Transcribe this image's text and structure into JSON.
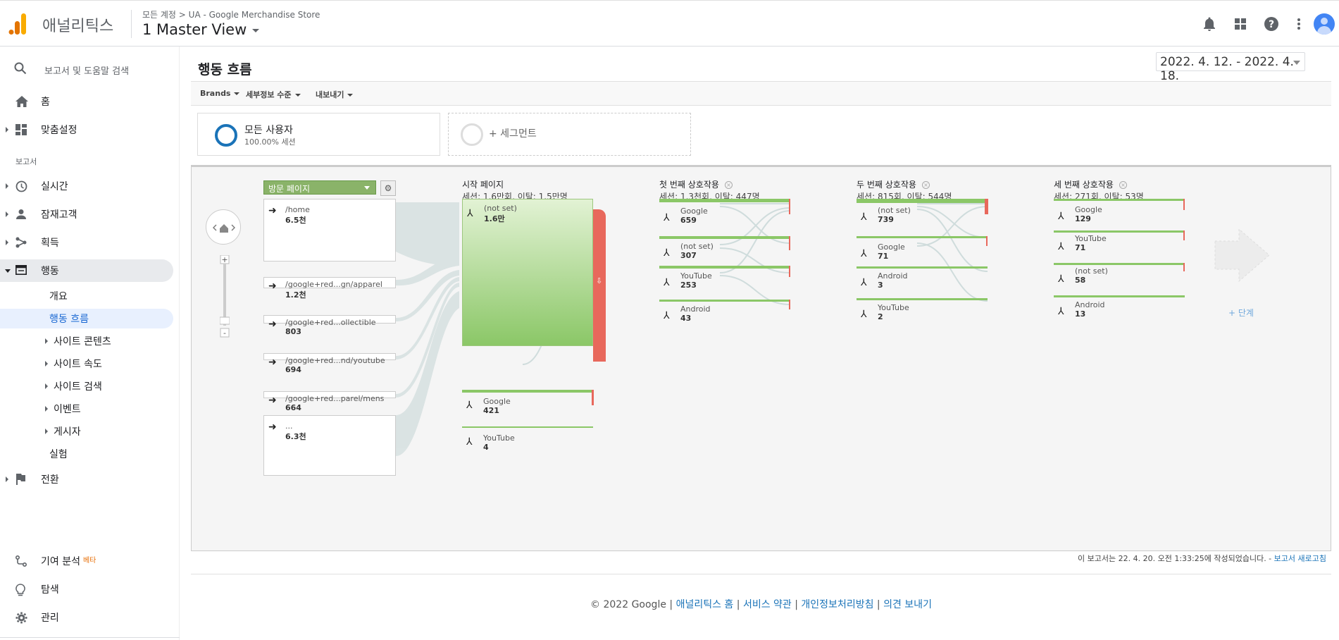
{
  "topbar": {
    "app_title": "애널리틱스",
    "breadcrumb": "모든 계정 > UA - Google Merchandise Store",
    "view": "1 Master View",
    "icons": [
      "bell-icon",
      "apps-icon",
      "help-icon",
      "more-vert-icon",
      "account-avatar"
    ]
  },
  "sidebar": {
    "search": "보고서 및 도움말 검색",
    "home": "홈",
    "customization": "맞춤설정",
    "reports_label": "보고서",
    "realtime": "실시간",
    "audience": "잠재고객",
    "acquisition": "획득",
    "behavior": "행동",
    "behavior_sub": {
      "overview": "개요",
      "flow": "행동 흐름",
      "site_content": "사이트 콘텐츠",
      "site_speed": "사이트 속도",
      "site_search": "사이트 검색",
      "events": "이벤트",
      "publisher": "게시자",
      "experiments": "실험"
    },
    "conversions": "전환",
    "attribution": "기여 분석",
    "attribution_badge": "베타",
    "discover": "탐색",
    "admin": "관리"
  },
  "main": {
    "title": "행동 흐름",
    "date_range": "2022. 4. 12. - 2022. 4. 18.",
    "toolbar": {
      "brands": "Brands",
      "detail_level": "세부정보 수준",
      "export": "내보내기"
    },
    "segments": {
      "all_users": "모든 사용자",
      "all_users_sub": "100.00% 세션",
      "add_segment": "+ 세그먼트"
    },
    "flow": {
      "dimension": "방문 페이지",
      "columns": [
        {
          "title": "시작 페이지",
          "stats": "세션: 1.6만회, 이탈: 1.5만명"
        },
        {
          "title": "첫 번째 상호작용",
          "stats": "세션: 1.3천회, 이탈: 447명"
        },
        {
          "title": "두 번째 상호작용",
          "stats": "세션: 815회, 이탈: 544명"
        },
        {
          "title": "세 번째 상호작용",
          "stats": "세션: 271회, 이탈: 53명"
        }
      ],
      "landing": [
        {
          "name": "/home",
          "value": "6.5천"
        },
        {
          "name": "/google+red...gn/apparel",
          "value": "1.2천"
        },
        {
          "name": "/google+red...ollectible",
          "value": "803"
        },
        {
          "name": "/google+red...nd/youtube",
          "value": "694"
        },
        {
          "name": "/google+red...parel/mens",
          "value": "664"
        },
        {
          "name": "...",
          "value": "6.3천"
        }
      ],
      "start": [
        {
          "name": "(not set)",
          "value": "1.6만"
        },
        {
          "name": "Google",
          "value": "421"
        },
        {
          "name": "YouTube",
          "value": "4"
        }
      ],
      "first": [
        {
          "name": "Google",
          "value": "659"
        },
        {
          "name": "(not set)",
          "value": "307"
        },
        {
          "name": "YouTube",
          "value": "253"
        },
        {
          "name": "Android",
          "value": "43"
        }
      ],
      "second": [
        {
          "name": "(not set)",
          "value": "739"
        },
        {
          "name": "Google",
          "value": "71"
        },
        {
          "name": "Android",
          "value": "3"
        },
        {
          "name": "YouTube",
          "value": "2"
        }
      ],
      "third": [
        {
          "name": "Google",
          "value": "129"
        },
        {
          "name": "YouTube",
          "value": "71"
        },
        {
          "name": "(not set)",
          "value": "58"
        },
        {
          "name": "Android",
          "value": "13"
        }
      ],
      "add_step": "+ 단계"
    },
    "report_note": "이 보고서는 22. 4. 20. 오전 1:33:25에 작성되었습니다. - ",
    "refresh_link": "보고서 새로고침"
  },
  "footer": {
    "copyright": "© 2022 Google",
    "links": [
      "애널리틱스 홈",
      "서비스 약관",
      "개인정보처리방침",
      "의견 보내기"
    ]
  },
  "colors": {
    "accent": "#1a73b8",
    "flow_green": "#8ab369",
    "dropoff_red": "#e8685c",
    "active_nav": "#e8f0fe"
  }
}
